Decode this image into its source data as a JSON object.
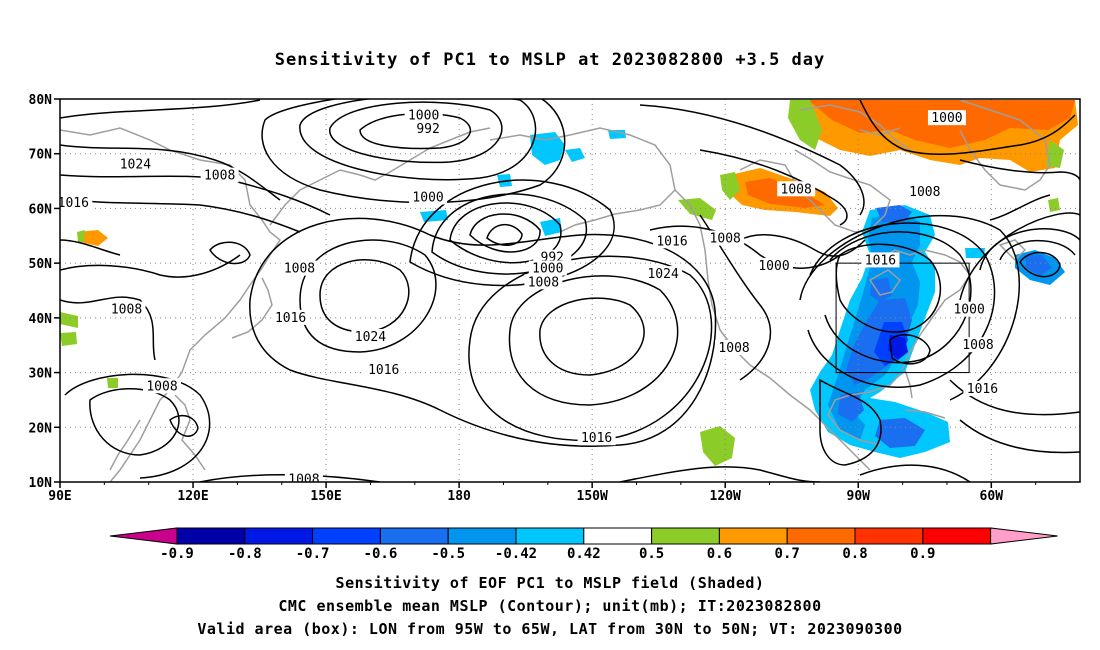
{
  "title": "Sensitivity of PC1 to MSLP at 2023082800 +3.5 day",
  "lat_labels": [
    "80N",
    "70N",
    "60N",
    "50N",
    "40N",
    "30N",
    "20N",
    "10N"
  ],
  "lon_labels": [
    "90E",
    "120E",
    "150E",
    "180",
    "150W",
    "120W",
    "90W",
    "60W"
  ],
  "contour_labels": [
    {
      "text": "1000",
      "lon": 172,
      "lat": 77
    },
    {
      "text": "992",
      "lon": 173,
      "lat": 74.5
    },
    {
      "text": "1024",
      "lon": 107,
      "lat": 68
    },
    {
      "text": "1008",
      "lon": 126,
      "lat": 66
    },
    {
      "text": "1016",
      "lon": 93,
      "lat": 61
    },
    {
      "text": "1000",
      "lon": 173,
      "lat": 62
    },
    {
      "text": "992",
      "lon": 201,
      "lat": 51
    },
    {
      "text": "1000",
      "lon": 200,
      "lat": 49
    },
    {
      "text": "1008",
      "lon": 199,
      "lat": 46.5
    },
    {
      "text": "1016",
      "lon": 228,
      "lat": 54
    },
    {
      "text": "1024",
      "lon": 226,
      "lat": 48
    },
    {
      "text": "1008",
      "lon": 240,
      "lat": 54.5
    },
    {
      "text": "1008",
      "lon": 144,
      "lat": 49
    },
    {
      "text": "1000",
      "lon": 251,
      "lat": 49.5
    },
    {
      "text": "1008",
      "lon": 285,
      "lat": 63
    },
    {
      "text": "1016",
      "lon": 275,
      "lat": 50.5
    },
    {
      "text": "1000",
      "lon": 295,
      "lat": 41.5
    },
    {
      "text": "1008",
      "lon": 297,
      "lat": 35
    },
    {
      "text": "1016",
      "lon": 298,
      "lat": 27
    },
    {
      "text": "1016",
      "lon": 142,
      "lat": 40
    },
    {
      "text": "1024",
      "lon": 160,
      "lat": 36.5
    },
    {
      "text": "1016",
      "lon": 163,
      "lat": 30.5
    },
    {
      "text": "1008",
      "lon": 105,
      "lat": 41.5
    },
    {
      "text": "1008",
      "lon": 113,
      "lat": 27.5
    },
    {
      "text": "1016",
      "lon": 211,
      "lat": 18
    },
    {
      "text": "1008",
      "lon": 242,
      "lat": 34.5
    },
    {
      "text": "1008",
      "lon": 145,
      "lat": 10.5
    },
    {
      "text": "1000",
      "lon": 290,
      "lat": 76.5
    },
    {
      "text": "1008",
      "lon": 256,
      "lat": 63.5
    }
  ],
  "colorbar": {
    "labels": [
      "-0.9",
      "-0.8",
      "-0.7",
      "-0.6",
      "-0.5",
      "-0.42",
      "0.42",
      "0.5",
      "0.6",
      "0.7",
      "0.8",
      "0.9"
    ],
    "colors": [
      "#0000a8",
      "#0018e6",
      "#0040ff",
      "#1a6ff0",
      "#0096f0",
      "#00c8ff",
      "#ffffff",
      "#8ccc28",
      "#ff9900",
      "#ff6a00",
      "#ff3300",
      "#ff0000"
    ],
    "low_color": "#c8008c",
    "high_color": "#ff9ec8"
  },
  "valid_box": {
    "lon_min": 265,
    "lon_max": 295,
    "lat_min": 30,
    "lat_max": 50
  },
  "captions": [
    "Sensitivity of EOF PC1 to MSLP field (Shaded)",
    "CMC ensemble mean MSLP (Contour); unit(mb); IT:2023082800",
    "Valid area (box): LON from 95W to 65W, LAT from 30N to 50N; VT: 2023090300"
  ]
}
